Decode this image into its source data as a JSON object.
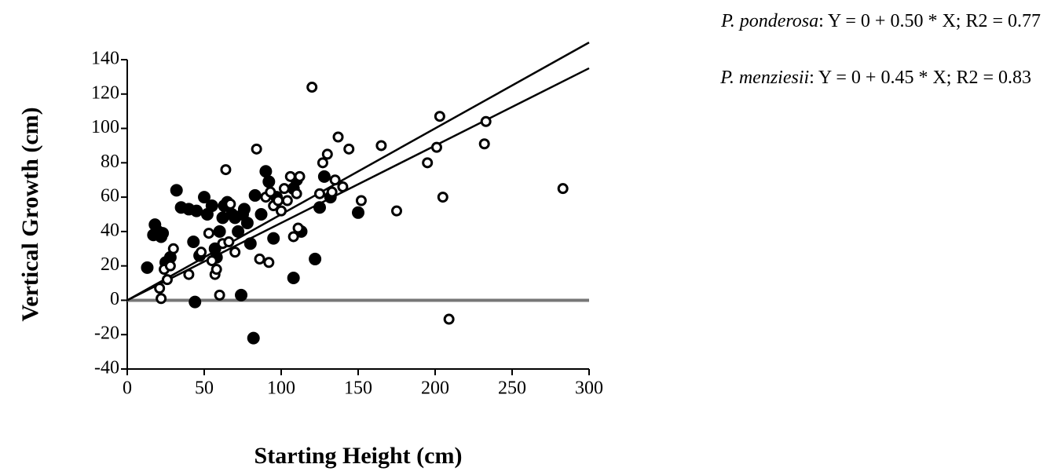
{
  "chart_data": {
    "type": "scatter",
    "x_label": "Starting Height (cm)",
    "y_label": "Vertical Growth (cm)",
    "xlim": [
      0,
      300
    ],
    "xticks": [
      0,
      50,
      100,
      150,
      200,
      250,
      300
    ],
    "ylim": [
      -40,
      140
    ],
    "yticks": [
      -40,
      -20,
      0,
      20,
      40,
      60,
      80,
      100,
      120,
      140
    ],
    "zero_line": true,
    "series": [
      {
        "marker": "filled",
        "color": "#000000",
        "x": [
          13,
          17,
          18,
          20,
          22,
          23,
          25,
          28,
          32,
          35,
          40,
          43,
          44,
          45,
          47,
          50,
          52,
          55,
          57,
          58,
          60,
          62,
          63,
          65,
          68,
          70,
          72,
          74,
          75,
          76,
          78,
          80,
          82,
          83,
          87,
          90,
          92,
          95,
          97,
          108,
          108,
          110,
          113,
          122,
          125,
          128,
          132,
          150
        ],
        "values": [
          19,
          38,
          44,
          40,
          37,
          39,
          22,
          25,
          64,
          54,
          53,
          34,
          -1,
          52,
          26,
          60,
          50,
          55,
          30,
          25,
          40,
          48,
          55,
          57,
          50,
          48,
          40,
          3,
          50,
          53,
          45,
          33,
          -22,
          61,
          50,
          75,
          69,
          36,
          60,
          13,
          65,
          70,
          40,
          24,
          54,
          72,
          60,
          51
        ]
      },
      {
        "marker": "open",
        "color": "#000000",
        "x": [
          21,
          22,
          24,
          26,
          28,
          30,
          40,
          48,
          53,
          55,
          57,
          58,
          60,
          62,
          64,
          66,
          67,
          70,
          84,
          86,
          90,
          92,
          93,
          95,
          98,
          100,
          102,
          104,
          106,
          108,
          110,
          111,
          112,
          120,
          125,
          127,
          130,
          133,
          135,
          137,
          140,
          144,
          152,
          165,
          175,
          195,
          201,
          203,
          205,
          209,
          232,
          233,
          283
        ],
        "values": [
          7,
          1,
          18,
          12,
          20,
          30,
          15,
          28,
          39,
          23,
          15,
          18,
          3,
          33,
          76,
          34,
          56,
          28,
          88,
          24,
          60,
          22,
          63,
          55,
          58,
          52,
          65,
          58,
          72,
          37,
          62,
          42,
          72,
          124,
          62,
          80,
          85,
          63,
          70,
          95,
          66,
          88,
          58,
          90,
          52,
          80,
          89,
          107,
          60,
          -11,
          91,
          104,
          65
        ]
      }
    ],
    "fits": [
      {
        "species": "P. ponderosa",
        "equation": ": Y = 0 + 0.50 * X; R2 = 0.77",
        "intercept": 0,
        "slope": 0.5
      },
      {
        "species": "P. menziesii",
        "equation": ": Y = 0 + 0.45 * X; R2 = 0.83",
        "intercept": 0,
        "slope": 0.45
      }
    ]
  }
}
